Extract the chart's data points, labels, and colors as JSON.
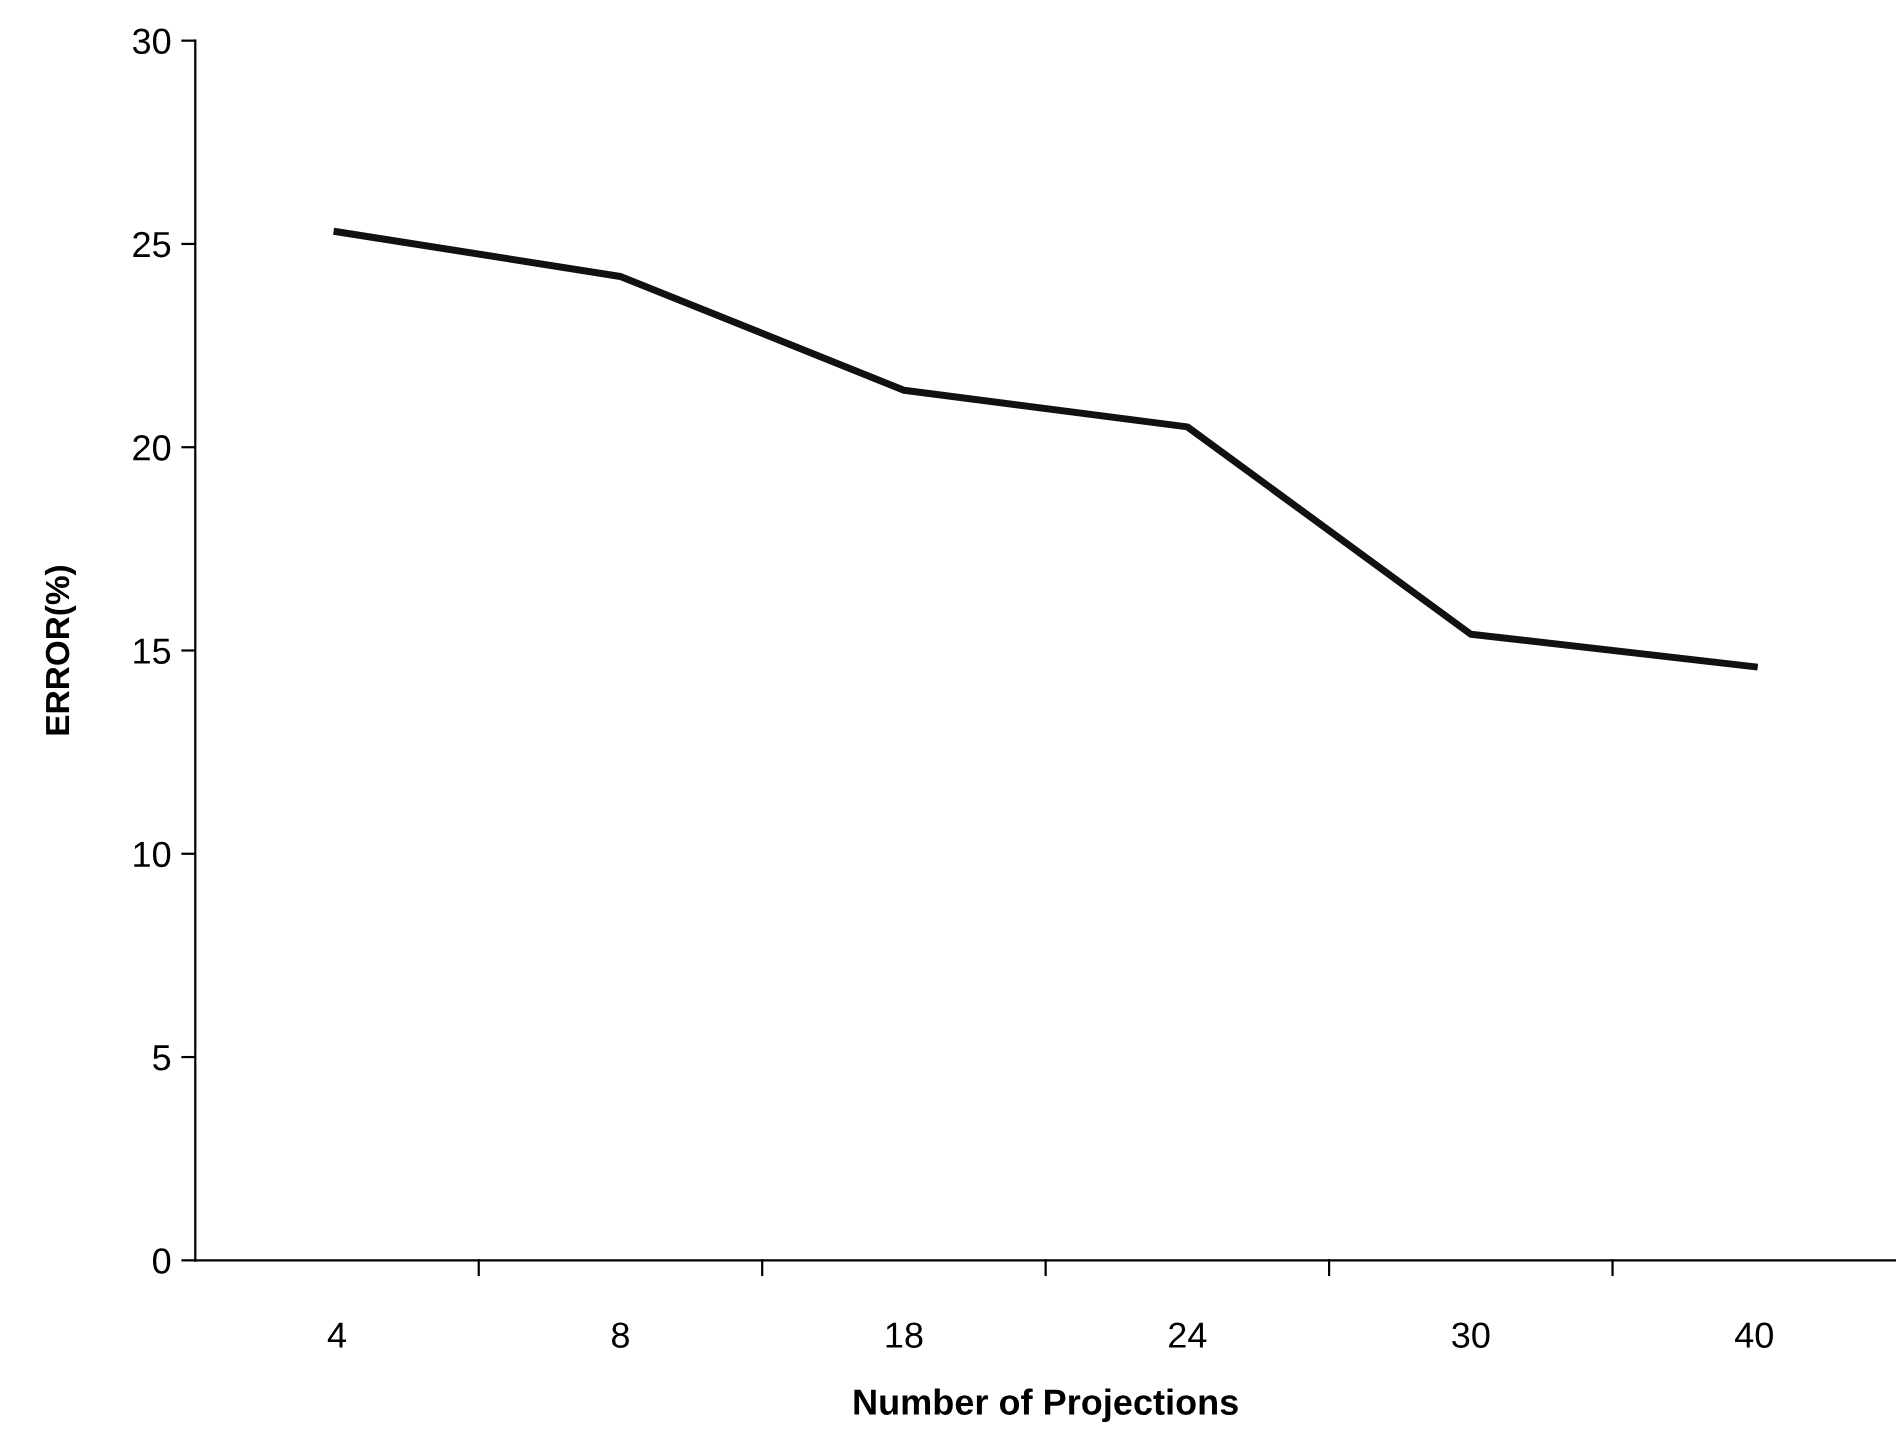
{
  "chart_data": {
    "type": "line",
    "xlabel": "Number of Projections",
    "ylabel": "ERROR(%)",
    "categories": [
      "4",
      "8",
      "18",
      "24",
      "30",
      "40"
    ],
    "series": [
      {
        "color": "#111111",
        "values": [
          25.3,
          24.2,
          21.4,
          20.5,
          15.4,
          14.6
        ]
      }
    ],
    "ylim": [
      0,
      30
    ],
    "yticks": [
      0,
      5,
      10,
      15,
      20,
      25,
      30
    ],
    "grid": false,
    "legend": false,
    "marker": "none",
    "line_style": "solid"
  }
}
